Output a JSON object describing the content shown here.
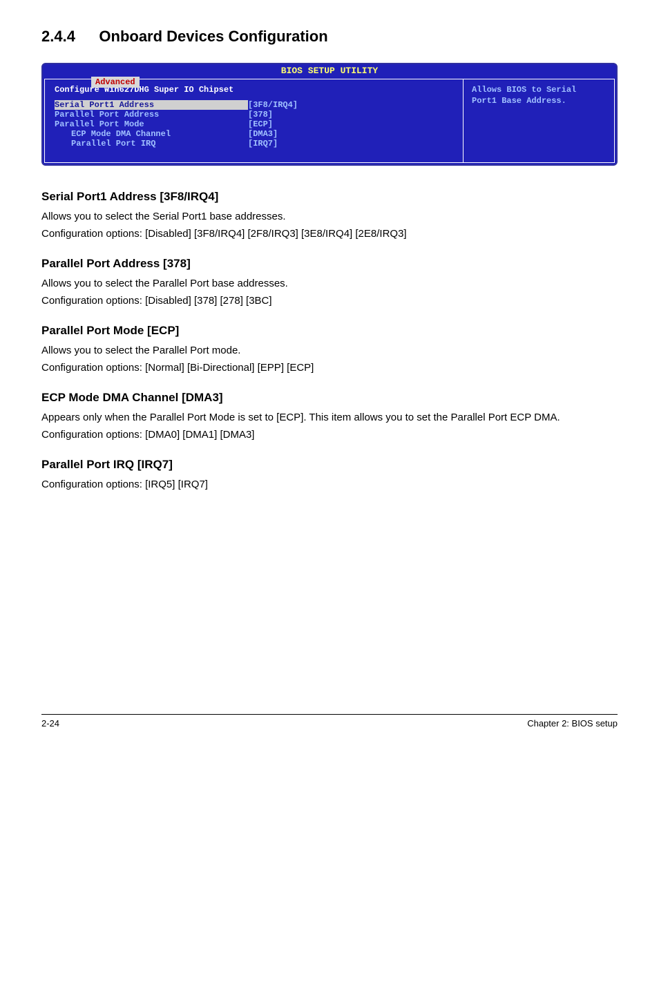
{
  "heading": {
    "number": "2.4.4",
    "title": "Onboard Devices Configuration"
  },
  "bios": {
    "header_title": "BIOS SETUP UTILITY",
    "tab_label": "Advanced",
    "chipset_title": "Configure Win627DHG Super IO Chipset",
    "rows": [
      {
        "label": "Serial Port1 Address",
        "value": "[3F8/IRQ4]",
        "indent": false
      },
      {
        "label": "Parallel Port Address",
        "value": "[378]",
        "indent": false
      },
      {
        "label": "Parallel Port Mode",
        "value": "[ECP]",
        "indent": false
      },
      {
        "label": "ECP Mode DMA Channel",
        "value": "[DMA3]",
        "indent": true
      },
      {
        "label": "Parallel Port IRQ",
        "value": "[IRQ7]",
        "indent": true
      }
    ],
    "help_text": "Allows BIOS to Serial Port1 Base Address.",
    "colors": {
      "background": "#2020b8",
      "header_text": "#ffff70",
      "normal_text": "#a0c0ff",
      "highlight_bg": "#d0d0d0",
      "highlight_text": "#1a1a99",
      "chipset_text": "#ffffff"
    }
  },
  "sections": [
    {
      "title": "Serial Port1 Address [3F8/IRQ4]",
      "lines": [
        "Allows you to select the Serial Port1 base addresses.",
        "Configuration options: [Disabled] [3F8/IRQ4] [2F8/IRQ3] [3E8/IRQ4] [2E8/IRQ3]"
      ]
    },
    {
      "title": "Parallel Port Address [378]",
      "lines": [
        "Allows you to select the Parallel Port base addresses.",
        "Configuration options: [Disabled] [378] [278] [3BC]"
      ]
    },
    {
      "title": "Parallel Port Mode [ECP]",
      "lines": [
        "Allows you to select the Parallel Port  mode.",
        "Configuration options: [Normal] [Bi-Directional] [EPP] [ECP]"
      ]
    },
    {
      "title": "ECP Mode DMA Channel [DMA3]",
      "lines": [
        "Appears only when the Parallel Port Mode is set to [ECP]. This item allows you to set the Parallel Port ECP DMA.",
        "Configuration options: [DMA0] [DMA1] [DMA3]"
      ]
    },
    {
      "title": "Parallel Port IRQ [IRQ7]",
      "lines": [
        "Configuration options: [IRQ5] [IRQ7]"
      ]
    }
  ],
  "footer": {
    "left": "2-24",
    "right": "Chapter 2: BIOS setup"
  }
}
